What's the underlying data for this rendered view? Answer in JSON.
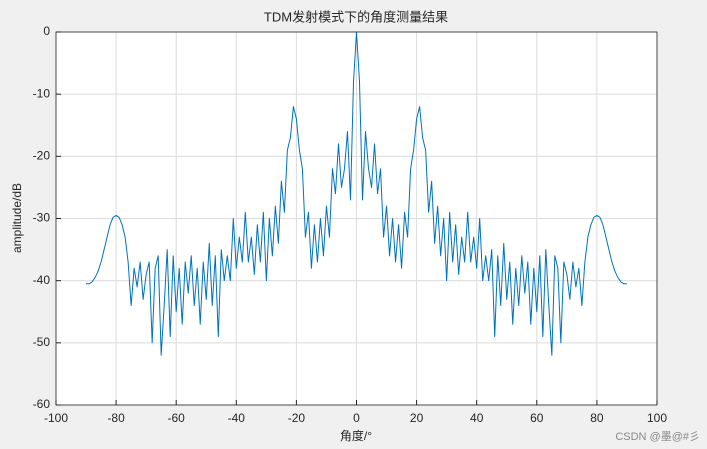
{
  "chart_data": {
    "type": "line",
    "title": "TDM发射模式下的角度测量结果",
    "x_label": "角度/°",
    "y_label": "amplitude/dB",
    "watermark": "CSDN @墨@#彡",
    "x": [
      -90,
      -89,
      -88,
      -87,
      -86,
      -85,
      -84,
      -83,
      -82,
      -81,
      -80,
      -79,
      -78,
      -77,
      -76,
      -75,
      -74,
      -73,
      -72,
      -71,
      -70,
      -69,
      -68,
      -67,
      -66,
      -65,
      -64,
      -63,
      -62,
      -61,
      -60,
      -59,
      -58,
      -57,
      -56,
      -55,
      -54,
      -53,
      -52,
      -51,
      -50,
      -49,
      -48,
      -47,
      -46,
      -45,
      -44,
      -43,
      -42,
      -41,
      -40,
      -39,
      -38,
      -37,
      -36,
      -35,
      -34,
      -33,
      -32,
      -31,
      -30,
      -29,
      -28,
      -27,
      -26,
      -25,
      -24,
      -23,
      -22,
      -21,
      -20,
      -19,
      -18,
      -17,
      -16,
      -15,
      -14,
      -13,
      -12,
      -11,
      -10,
      -9,
      -8,
      -7,
      -6,
      -5,
      -4,
      -3,
      -2,
      -1,
      0,
      1,
      2,
      3,
      4,
      5,
      6,
      7,
      8,
      9,
      10,
      11,
      12,
      13,
      14,
      15,
      16,
      17,
      18,
      19,
      20,
      21,
      22,
      23,
      24,
      25,
      26,
      27,
      28,
      29,
      30,
      31,
      32,
      33,
      34,
      35,
      36,
      37,
      38,
      39,
      40,
      41,
      42,
      43,
      44,
      45,
      46,
      47,
      48,
      49,
      50,
      51,
      52,
      53,
      54,
      55,
      56,
      57,
      58,
      59,
      60,
      61,
      62,
      63,
      64,
      65,
      66,
      67,
      68,
      69,
      70,
      71,
      72,
      73,
      74,
      75,
      76,
      77,
      78,
      79,
      80,
      81,
      82,
      83,
      84,
      85,
      86,
      87,
      88,
      89,
      90
    ],
    "series": [
      {
        "color": "#0072bd",
        "values": [
          -40.5,
          -40.5,
          -40.2,
          -39.5,
          -38.5,
          -37,
          -35,
          -33,
          -31,
          -29.8,
          -29.5,
          -29.8,
          -31,
          -33,
          -37,
          -44,
          -38,
          -41,
          -37,
          -43,
          -39,
          -37,
          -50,
          -38,
          -36,
          -52,
          -44,
          -35,
          -49,
          -36,
          -45,
          -38,
          -47,
          -37,
          -42,
          -36,
          -44,
          -38,
          -47,
          -37,
          -43,
          -34,
          -44,
          -36,
          -49,
          -35,
          -40,
          -36,
          -40,
          -30,
          -38,
          -33,
          -37,
          -29,
          -37,
          -33,
          -39,
          -31,
          -37,
          -29,
          -40,
          -30,
          -36,
          -28,
          -34,
          -24,
          -29,
          -19,
          -17,
          -12,
          -14,
          -19,
          -22,
          -33,
          -29,
          -38,
          -31,
          -37,
          -30,
          -36,
          -28,
          -33,
          -22,
          -26,
          -18,
          -25,
          -22,
          -16,
          -27,
          -8,
          0,
          -8,
          -27,
          -16,
          -22,
          -25,
          -18,
          -26,
          -22,
          -33,
          -28,
          -36,
          -30,
          -37,
          -31,
          -38,
          -29,
          -33,
          -22,
          -19,
          -14,
          -12,
          -17,
          -19,
          -29,
          -24,
          -34,
          -28,
          -36,
          -30,
          -40,
          -29,
          -37,
          -31,
          -39,
          -33,
          -37,
          -29,
          -37,
          -33,
          -38,
          -30,
          -40,
          -36,
          -40,
          -35,
          -49,
          -36,
          -44,
          -34,
          -43,
          -37,
          -47,
          -38,
          -44,
          -36,
          -42,
          -37,
          -47,
          -38,
          -45,
          -36,
          -49,
          -35,
          -44,
          -52,
          -36,
          -38,
          -50,
          -37,
          -39,
          -43,
          -37,
          -41,
          -38,
          -44,
          -37,
          -33,
          -31,
          -29.8,
          -29.5,
          -29.8,
          -31,
          -33,
          -35,
          -37,
          -38.5,
          -39.5,
          -40.2,
          -40.5,
          -40.5
        ]
      }
    ],
    "xlim": [
      -100,
      100
    ],
    "xticks": [
      -100,
      -80,
      -60,
      -40,
      -20,
      0,
      20,
      40,
      60,
      80,
      100
    ],
    "ylim": [
      -60,
      0
    ],
    "yticks": [
      -60,
      -50,
      -40,
      -30,
      -20,
      -10,
      0
    ],
    "grid": true
  }
}
